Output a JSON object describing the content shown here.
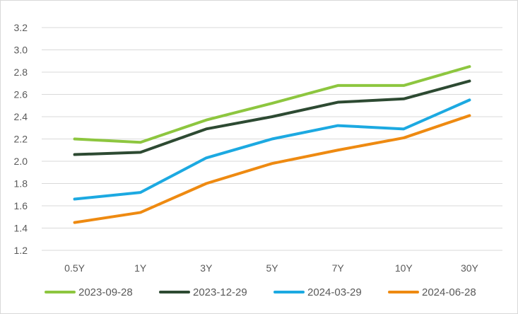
{
  "chart_data": {
    "type": "line",
    "title": "",
    "xlabel": "",
    "ylabel": "",
    "categories": [
      "0.5Y",
      "1Y",
      "3Y",
      "5Y",
      "7Y",
      "10Y",
      "30Y"
    ],
    "ylim": [
      1.2,
      3.2
    ],
    "yticks": [
      "1.2",
      "1.4",
      "1.6",
      "1.8",
      "2.0",
      "2.2",
      "2.4",
      "2.6",
      "2.8",
      "3.0",
      "3.2"
    ],
    "grid": true,
    "legend_position": "bottom",
    "series": [
      {
        "name": "2023-09-28",
        "color": "#8dc63f",
        "values": [
          2.2,
          2.17,
          2.37,
          2.52,
          2.68,
          2.68,
          2.85
        ]
      },
      {
        "name": "2023-12-29",
        "color": "#2d4a32",
        "values": [
          2.06,
          2.08,
          2.29,
          2.4,
          2.53,
          2.56,
          2.72
        ]
      },
      {
        "name": "2024-03-29",
        "color": "#1ca9e1",
        "values": [
          1.66,
          1.72,
          2.03,
          2.2,
          2.32,
          2.29,
          2.55
        ]
      },
      {
        "name": "2024-06-28",
        "color": "#ee8a11",
        "values": [
          1.45,
          1.54,
          1.8,
          1.98,
          2.1,
          2.21,
          2.41
        ]
      }
    ]
  }
}
